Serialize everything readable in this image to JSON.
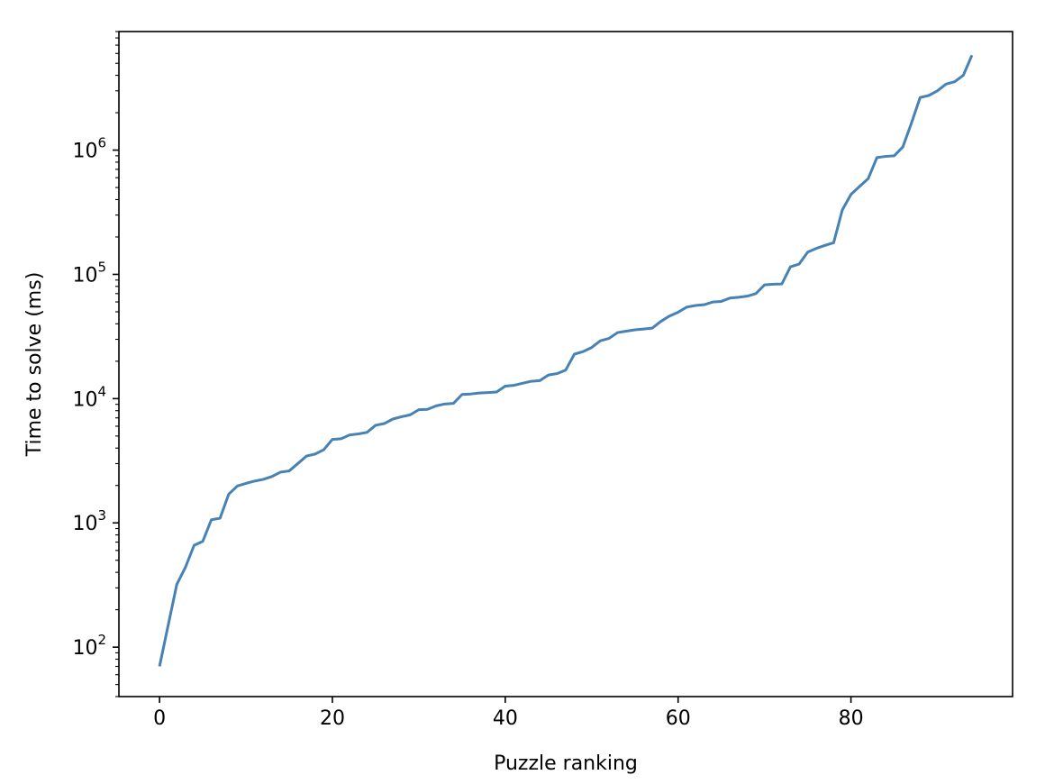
{
  "chart_data": {
    "type": "line",
    "title": "",
    "xlabel": "Puzzle ranking",
    "ylabel": "Time to solve (ms)",
    "xlim": [
      -4.7,
      98.7
    ],
    "ylim": [
      40,
      9000000
    ],
    "yscale": "log",
    "grid": false,
    "legend": "none",
    "xticks": [
      0,
      20,
      40,
      60,
      80
    ],
    "xtick_labels": [
      "0",
      "20",
      "40",
      "60",
      "80"
    ],
    "yticks": [
      100,
      1000,
      10000,
      100000,
      1000000
    ],
    "ytick_labels": [
      {
        "base": "10",
        "exp": "2"
      },
      {
        "base": "10",
        "exp": "3"
      },
      {
        "base": "10",
        "exp": "4"
      },
      {
        "base": "10",
        "exp": "5"
      },
      {
        "base": "10",
        "exp": "6"
      }
    ],
    "series": [
      {
        "color": "#4682b4",
        "x": [
          0,
          1,
          2,
          3,
          4,
          5,
          6,
          7,
          8,
          9,
          10,
          11,
          12,
          13,
          14,
          15,
          16,
          17,
          18,
          19,
          20,
          21,
          22,
          23,
          24,
          25,
          26,
          27,
          28,
          29,
          30,
          31,
          32,
          33,
          34,
          35,
          36,
          37,
          38,
          39,
          40,
          41,
          42,
          43,
          44,
          45,
          46,
          47,
          48,
          49,
          50,
          51,
          52,
          53,
          54,
          55,
          56,
          57,
          58,
          59,
          60,
          61,
          62,
          63,
          64,
          65,
          66,
          67,
          68,
          69,
          70,
          71,
          72,
          73,
          74,
          75,
          76,
          77,
          78,
          79,
          80,
          81,
          82,
          83,
          84,
          85,
          86,
          87,
          88,
          89,
          90,
          91,
          92,
          93,
          94
        ],
        "values": [
          70,
          150,
          320,
          440,
          660,
          710,
          1060,
          1090,
          1700,
          1980,
          2080,
          2170,
          2240,
          2360,
          2560,
          2620,
          3000,
          3450,
          3580,
          3880,
          4700,
          4750,
          5100,
          5200,
          5350,
          6100,
          6300,
          6850,
          7150,
          7400,
          8150,
          8200,
          8750,
          9050,
          9150,
          10800,
          10900,
          11100,
          11200,
          11300,
          12600,
          12800,
          13300,
          13800,
          13950,
          15500,
          15900,
          17000,
          22800,
          23900,
          25800,
          29200,
          30500,
          34000,
          34900,
          35800,
          36300,
          36900,
          41800,
          46200,
          49600,
          54500,
          56200,
          57000,
          59900,
          60600,
          64500,
          65400,
          66800,
          70000,
          82300,
          83400,
          83700,
          115000,
          121000,
          151000,
          162000,
          171000,
          180000,
          330000,
          440000,
          510000,
          590000,
          870000,
          890000,
          900000,
          1060000,
          1650000,
          2650000,
          2750000,
          3000000,
          3400000,
          3550000,
          4000000,
          5800000
        ]
      }
    ]
  }
}
